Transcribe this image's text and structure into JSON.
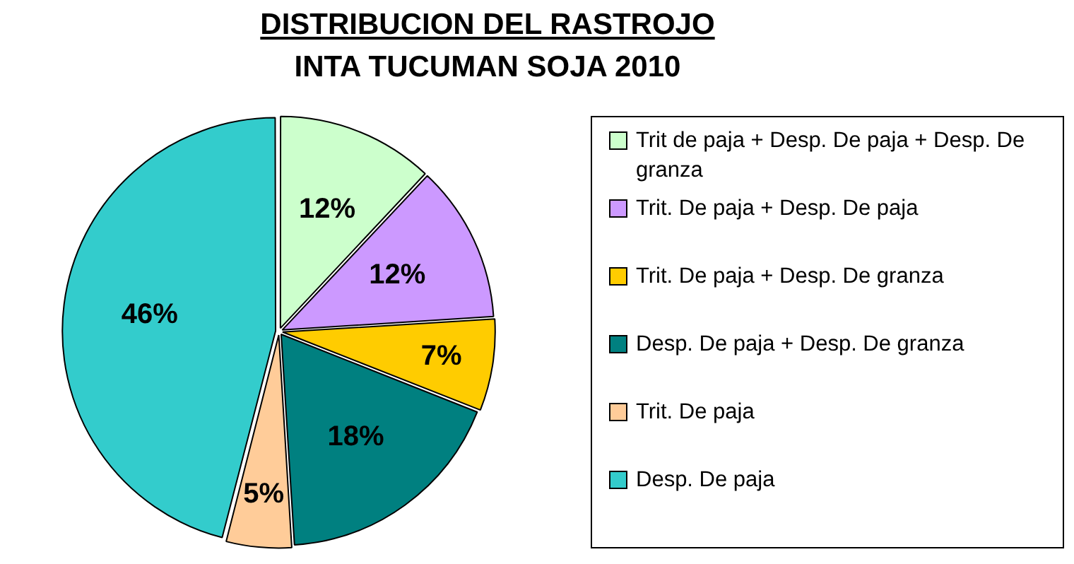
{
  "chart_data": {
    "type": "pie",
    "title": "DISTRIBUCION DEL RASTROJO",
    "subtitle": "INTA TUCUMAN SOJA 2010",
    "categories": [
      "Trit de paja + Desp. De paja + Desp. De granza",
      "Trit. De paja + Desp. De paja",
      "Trit. De paja + Desp. De granza",
      "Desp. De paja + Desp. De granza",
      "Trit. De paja",
      "Desp. De paja"
    ],
    "values": [
      12,
      12,
      7,
      18,
      5,
      46
    ],
    "colors": [
      "#ccffcc",
      "#cc99ff",
      "#ffcc00",
      "#008080",
      "#ffcc99",
      "#33cccc"
    ],
    "value_labels": [
      "12%",
      "12%",
      "7%",
      "18%",
      "5%",
      "46%"
    ],
    "legend": "right"
  }
}
